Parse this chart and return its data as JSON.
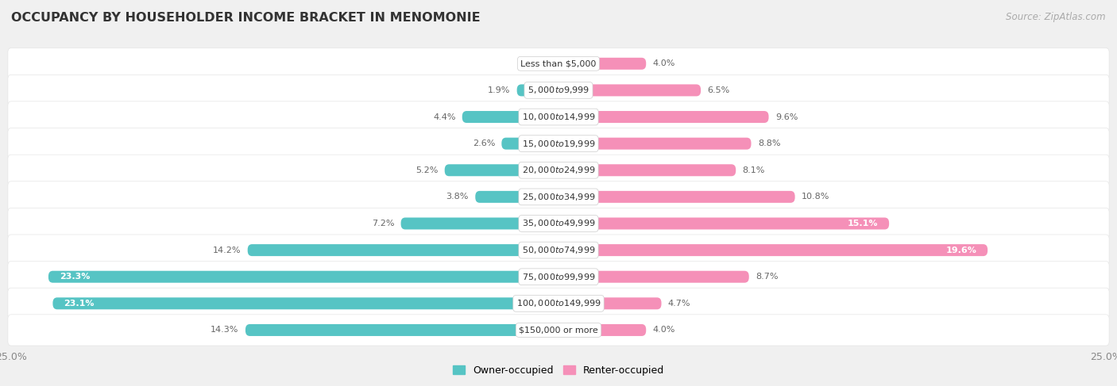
{
  "title": "OCCUPANCY BY HOUSEHOLDER INCOME BRACKET IN MENOMONIE",
  "source": "Source: ZipAtlas.com",
  "categories": [
    "Less than $5,000",
    "$5,000 to $9,999",
    "$10,000 to $14,999",
    "$15,000 to $19,999",
    "$20,000 to $24,999",
    "$25,000 to $34,999",
    "$35,000 to $49,999",
    "$50,000 to $74,999",
    "$75,000 to $99,999",
    "$100,000 to $149,999",
    "$150,000 or more"
  ],
  "owner_values": [
    0.0,
    1.9,
    4.4,
    2.6,
    5.2,
    3.8,
    7.2,
    14.2,
    23.3,
    23.1,
    14.3
  ],
  "renter_values": [
    4.0,
    6.5,
    9.6,
    8.8,
    8.1,
    10.8,
    15.1,
    19.6,
    8.7,
    4.7,
    4.0
  ],
  "owner_color": "#56c4c4",
  "renter_color": "#f590b8",
  "background_color": "#f0f0f0",
  "row_color": "#ffffff",
  "axis_limit": 25.0,
  "bar_height": 0.62,
  "title_fontsize": 11.5,
  "label_fontsize": 8,
  "category_fontsize": 8,
  "source_fontsize": 8.5,
  "legend_fontsize": 9
}
